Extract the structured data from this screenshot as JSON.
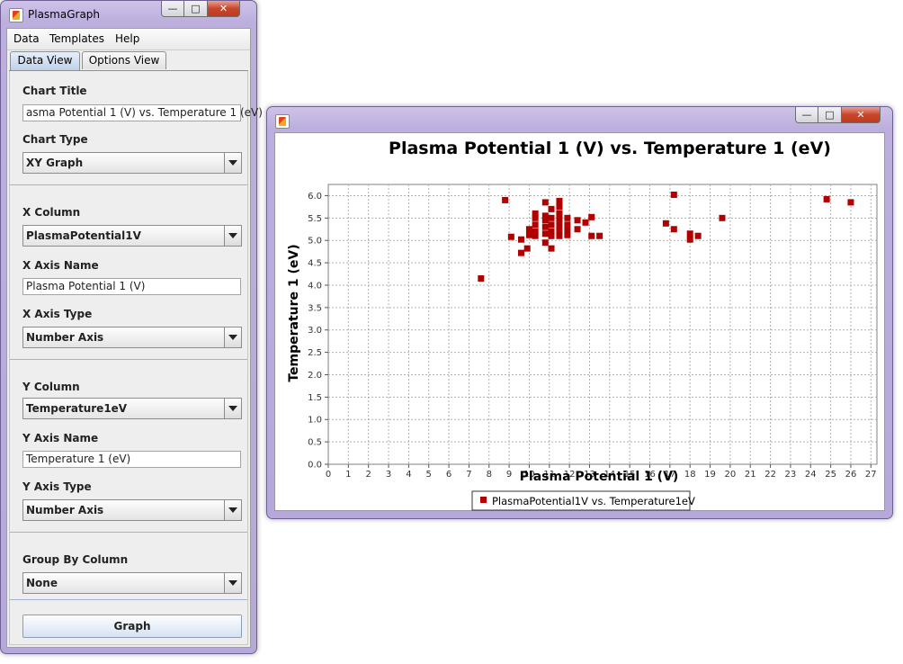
{
  "left_window": {
    "title": "PlasmaGraph",
    "menu": [
      "Data",
      "Templates",
      "Help"
    ],
    "tabs": [
      {
        "label": "Data View",
        "active": true
      },
      {
        "label": "Options View",
        "active": false
      }
    ],
    "form": {
      "chart_title_label": "Chart Title",
      "chart_title_value": "asma Potential 1 (V) vs. Temperature 1 (eV)",
      "chart_type_label": "Chart Type",
      "chart_type_value": "XY Graph",
      "x_column_label": "X Column",
      "x_column_value": "PlasmaPotential1V",
      "x_axis_name_label": "X Axis Name",
      "x_axis_name_value": "Plasma Potential 1 (V)",
      "x_axis_type_label": "X Axis Type",
      "x_axis_type_value": "Number Axis",
      "y_column_label": "Y Column",
      "y_column_value": "Temperature1eV",
      "y_axis_name_label": "Y Axis Name",
      "y_axis_name_value": "Temperature 1 (eV)",
      "y_axis_type_label": "Y Axis Type",
      "y_axis_type_value": "Number Axis",
      "group_by_label": "Group By Column",
      "group_by_value": "None",
      "graph_button": "Graph"
    }
  },
  "chart_window": {
    "window_controls": [
      "minimize",
      "maximize",
      "close"
    ]
  },
  "chart_data": {
    "type": "scatter",
    "title": "Plasma Potential 1 (V) vs. Temperature 1 (eV)",
    "xlabel": "Plasma Potential 1 (V)",
    "ylabel": "Temperature 1 (eV)",
    "xlim": [
      0,
      27.3
    ],
    "ylim": [
      0,
      6.25
    ],
    "x_ticks": [
      "0",
      "1",
      "2",
      "3",
      "4",
      "5",
      "6",
      "7",
      "8",
      "9",
      "10",
      "11",
      "12",
      "13",
      "14",
      "15",
      "16",
      "17",
      "18",
      "19",
      "20",
      "21",
      "22",
      "23",
      "24",
      "25",
      "26",
      "27"
    ],
    "y_ticks": [
      "0.0",
      "0.5",
      "1.0",
      "1.5",
      "2.0",
      "2.5",
      "3.0",
      "3.5",
      "4.0",
      "4.5",
      "5.0",
      "5.5",
      "6.0"
    ],
    "grid": true,
    "legend_position": "bottom",
    "series": [
      {
        "name": "PlasmaPotential1V vs. Temperature1eV",
        "color": "#b00000",
        "points": [
          [
            7.6,
            4.15
          ],
          [
            8.8,
            5.9
          ],
          [
            9.1,
            5.08
          ],
          [
            9.6,
            4.72
          ],
          [
            9.6,
            5.02
          ],
          [
            9.9,
            4.82
          ],
          [
            10.0,
            5.12
          ],
          [
            10.0,
            5.25
          ],
          [
            10.3,
            5.1
          ],
          [
            10.3,
            5.2
          ],
          [
            10.3,
            5.35
          ],
          [
            10.3,
            5.5
          ],
          [
            10.3,
            5.6
          ],
          [
            10.8,
            4.95
          ],
          [
            10.8,
            5.15
          ],
          [
            10.8,
            5.3
          ],
          [
            10.8,
            5.45
          ],
          [
            10.8,
            5.55
          ],
          [
            10.8,
            5.85
          ],
          [
            11.1,
            4.82
          ],
          [
            11.1,
            5.1
          ],
          [
            11.1,
            5.2
          ],
          [
            11.1,
            5.35
          ],
          [
            11.1,
            5.5
          ],
          [
            11.1,
            5.7
          ],
          [
            11.5,
            5.1
          ],
          [
            11.5,
            5.2
          ],
          [
            11.5,
            5.3
          ],
          [
            11.5,
            5.4
          ],
          [
            11.5,
            5.5
          ],
          [
            11.5,
            5.6
          ],
          [
            11.5,
            5.75
          ],
          [
            11.5,
            5.88
          ],
          [
            11.9,
            5.12
          ],
          [
            11.9,
            5.22
          ],
          [
            11.9,
            5.35
          ],
          [
            11.9,
            5.5
          ],
          [
            12.4,
            5.25
          ],
          [
            12.4,
            5.45
          ],
          [
            12.8,
            5.4
          ],
          [
            13.1,
            5.1
          ],
          [
            13.1,
            5.52
          ],
          [
            13.5,
            5.1
          ],
          [
            16.8,
            5.38
          ],
          [
            17.2,
            5.25
          ],
          [
            17.2,
            6.02
          ],
          [
            18.0,
            5.02
          ],
          [
            18.0,
            5.15
          ],
          [
            18.4,
            5.1
          ],
          [
            19.6,
            5.5
          ],
          [
            24.8,
            5.92
          ],
          [
            26.0,
            5.85
          ]
        ]
      }
    ]
  }
}
